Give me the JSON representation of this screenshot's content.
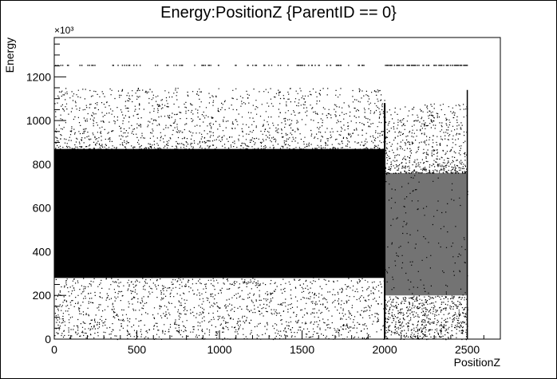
{
  "chart_data": {
    "type": "scatter",
    "title": "Energy:PositionZ {ParentID == 0}",
    "xlabel": "PositionZ",
    "ylabel": "Energy",
    "y_multiplier_label": "×10³",
    "xlim": [
      0,
      2700
    ],
    "ylim": [
      0,
      1380
    ],
    "x_ticks": [
      0,
      500,
      1000,
      1500,
      2000,
      2500
    ],
    "y_ticks": [
      0,
      200,
      400,
      600,
      800,
      1000,
      1200
    ],
    "grid": false,
    "legend": "none",
    "marker_color": "#000000",
    "regions": [
      {
        "x_range": [
          0,
          2000
        ],
        "dense_band": [
          280,
          870
        ],
        "sparse_band": [
          0,
          1150
        ],
        "sparse_line": 1255
      },
      {
        "x_range": [
          2000,
          2500
        ],
        "dense_band": [
          200,
          760
        ],
        "sparse_band": [
          0,
          1080
        ],
        "sparse_line": 1255
      }
    ],
    "vertical_edges": [
      2000,
      2500
    ]
  }
}
